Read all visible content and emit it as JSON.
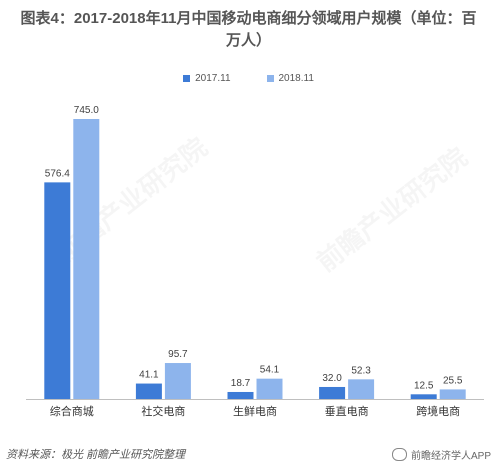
{
  "header": {
    "title": "图表4：2017-2018年11月中国移动电商细分领域用户规模（单位：百万人）"
  },
  "colors": {
    "series_2017": "#3d7bd6",
    "series_2018": "#8db4ec",
    "axis": "#bfbfbf",
    "label": "#404040"
  },
  "watermark": {
    "text": "前瞻产业研究院"
  },
  "chart_data": {
    "type": "bar",
    "title": "图表4：2017-2018年11月中国移动电商细分领域用户规模（单位：百万人）",
    "categories": [
      "综合商城",
      "社交电商",
      "生鲜电商",
      "垂直电商",
      "跨境电商"
    ],
    "series": [
      {
        "name": "2017.11",
        "values": [
          576.4,
          41.1,
          18.7,
          32.0,
          12.5
        ]
      },
      {
        "name": "2018.11",
        "values": [
          745.0,
          95.7,
          54.1,
          52.3,
          25.5
        ]
      }
    ],
    "value_labels": [
      [
        "576.4",
        "41.1",
        "18.7",
        "32.0",
        "12.5"
      ],
      [
        "745.0",
        "95.7",
        "54.1",
        "52.3",
        "25.5"
      ]
    ],
    "ylim": [
      0,
      745
    ],
    "grid": false,
    "legend_position": "top"
  },
  "footer": {
    "source": "资料来源：极光  前瞻产业研究院整理",
    "wechat": "前瞻经济学人APP"
  }
}
